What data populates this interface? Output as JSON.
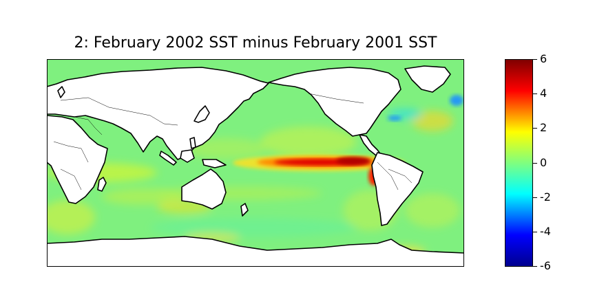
{
  "title": "2: February 2002 SST minus February 2001 SST",
  "map": {
    "projection": "equirectangular",
    "central_longitude": 180,
    "variable": "SST difference",
    "land_color": "#ffffff",
    "ocean_base_color": "#7ff07f"
  },
  "colorbar": {
    "colormap": "jet",
    "min": -6,
    "max": 6,
    "ticks": [
      "6",
      "4",
      "2",
      "0",
      "-2",
      "-4",
      "-6"
    ]
  }
}
